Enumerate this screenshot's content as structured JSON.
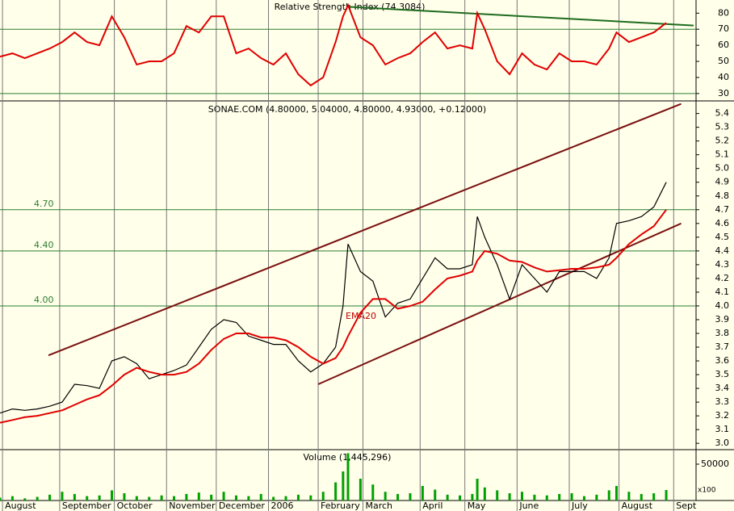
{
  "chart_data": [
    {
      "type": "line",
      "title": "Relative Strength Index (74.3084)",
      "xlim": [
        0,
        280
      ],
      "ylim": [
        26.4,
        88.2
      ],
      "yticks": [
        30,
        40,
        50,
        60,
        70,
        80
      ],
      "levels": [
        70,
        30
      ],
      "level_color": "#2e7d32",
      "x": [
        0,
        5,
        10,
        15,
        20,
        25,
        30,
        35,
        40,
        45,
        50,
        55,
        60,
        65,
        70,
        75,
        80,
        85,
        90,
        95,
        100,
        105,
        110,
        115,
        120,
        125,
        130,
        135,
        138,
        140,
        145,
        150,
        155,
        160,
        165,
        170,
        175,
        180,
        185,
        190,
        192,
        195,
        200,
        205,
        210,
        215,
        220,
        225,
        230,
        235,
        240,
        245,
        248,
        253,
        258,
        263,
        268
      ],
      "series": [
        {
          "name": "RSI",
          "color": "#e00000",
          "values": [
            53,
            55,
            52,
            55,
            58,
            62,
            68,
            62,
            60,
            78,
            65,
            48,
            50,
            50,
            55,
            72,
            68,
            78,
            78,
            55,
            58,
            52,
            48,
            55,
            42,
            35,
            40,
            62,
            78,
            85,
            65,
            60,
            48,
            52,
            55,
            62,
            68,
            58,
            60,
            58,
            80,
            70,
            50,
            42,
            55,
            48,
            45,
            55,
            50,
            50,
            48,
            58,
            68,
            62,
            65,
            68,
            74
          ]
        }
      ],
      "trendlines": [
        {
          "x": [
            140,
            279
          ],
          "values": [
            84,
            72.3
          ],
          "color": "#1f6b1f"
        }
      ]
    },
    {
      "type": "line",
      "title": "SONAE.COM (4.80000, 5.04000, 4.80000, 4.93000, +0.12000)",
      "xlim": [
        0,
        280
      ],
      "ylim": [
        2.96,
        5.48
      ],
      "yticks": [
        {
          "value": 3,
          "label": "3.0"
        },
        3.1,
        3.2,
        3.3,
        3.4,
        3.5,
        3.6,
        3.7,
        3.8,
        3.9,
        {
          "value": 4,
          "label": "4.0"
        },
        4.1,
        4.2,
        4.3,
        4.4,
        4.5,
        4.6,
        4.7,
        4.8,
        4.9,
        {
          "value": 5,
          "label": "5.0"
        },
        5.1,
        5.2,
        5.3,
        5.4
      ],
      "levels": [
        {
          "value": 4.7,
          "label": "4.70"
        },
        {
          "value": 4.4,
          "label": "4.40"
        },
        {
          "value": 4,
          "label": "4.00"
        }
      ],
      "level_color": "#2e7d32",
      "x": [
        0,
        5,
        10,
        15,
        20,
        25,
        30,
        35,
        40,
        45,
        50,
        55,
        60,
        65,
        70,
        75,
        80,
        85,
        90,
        95,
        100,
        105,
        110,
        115,
        120,
        125,
        130,
        135,
        138,
        140,
        145,
        150,
        155,
        160,
        165,
        170,
        175,
        180,
        185,
        190,
        192,
        195,
        200,
        205,
        210,
        215,
        220,
        225,
        230,
        235,
        240,
        245,
        248,
        253,
        258,
        263,
        268
      ],
      "series": [
        {
          "name": "SONAE.COM",
          "color": "#000000",
          "values": [
            3.22,
            3.25,
            3.24,
            3.25,
            3.27,
            3.3,
            3.43,
            3.42,
            3.4,
            3.6,
            3.63,
            3.58,
            3.47,
            3.5,
            3.53,
            3.57,
            3.7,
            3.83,
            3.9,
            3.88,
            3.78,
            3.75,
            3.72,
            3.72,
            3.6,
            3.52,
            3.58,
            3.7,
            4.0,
            4.45,
            4.25,
            4.18,
            3.92,
            4.02,
            4.05,
            4.2,
            4.35,
            4.27,
            4.27,
            4.3,
            4.65,
            4.5,
            4.3,
            4.05,
            4.3,
            4.2,
            4.1,
            4.25,
            4.25,
            4.25,
            4.2,
            4.35,
            4.6,
            4.62,
            4.65,
            4.72,
            4.9
          ]
        },
        {
          "name": "EMA20",
          "color": "#e00000",
          "values": [
            3.15,
            3.17,
            3.19,
            3.2,
            3.22,
            3.24,
            3.28,
            3.32,
            3.35,
            3.42,
            3.5,
            3.55,
            3.52,
            3.5,
            3.5,
            3.52,
            3.58,
            3.68,
            3.76,
            3.8,
            3.8,
            3.77,
            3.77,
            3.75,
            3.7,
            3.63,
            3.58,
            3.62,
            3.7,
            3.78,
            3.95,
            4.05,
            4.05,
            3.98,
            4.0,
            4.03,
            4.12,
            4.2,
            4.22,
            4.25,
            4.33,
            4.4,
            4.38,
            4.33,
            4.32,
            4.28,
            4.25,
            4.26,
            4.27,
            4.27,
            4.28,
            4.3,
            4.35,
            4.45,
            4.52,
            4.58,
            4.7
          ]
        }
      ],
      "trendlines": [
        {
          "x": [
            19.5,
            274
          ],
          "values": [
            3.64,
            5.47
          ],
          "color": "#7a1010"
        },
        {
          "x": [
            128,
            274
          ],
          "values": [
            3.43,
            4.6
          ],
          "color": "#7a1010"
        }
      ]
    },
    {
      "type": "bar",
      "title": "Volume (1,445,296)",
      "unit_note": "x100",
      "xlim": [
        0,
        280
      ],
      "ylim": [
        0,
        68900
      ],
      "yticks": [
        50000
      ],
      "xticks": [
        {
          "value": 1,
          "label": "August"
        },
        {
          "value": 24,
          "label": "September"
        },
        {
          "value": 46,
          "label": "October"
        },
        {
          "value": 67,
          "label": "November"
        },
        {
          "value": 87,
          "label": "December"
        },
        {
          "value": 108,
          "label": "2006"
        },
        {
          "value": 128,
          "label": "February"
        },
        {
          "value": 146,
          "label": "March"
        },
        {
          "value": 169,
          "label": "April"
        },
        {
          "value": 187,
          "label": "May"
        },
        {
          "value": 208,
          "label": "June"
        },
        {
          "value": 229,
          "label": "July"
        },
        {
          "value": 249,
          "label": "August"
        },
        {
          "value": 271,
          "label": "Sept"
        }
      ],
      "x": [
        0,
        5,
        10,
        15,
        20,
        25,
        30,
        35,
        40,
        45,
        50,
        55,
        60,
        65,
        70,
        75,
        80,
        85,
        90,
        95,
        100,
        105,
        110,
        115,
        120,
        125,
        130,
        135,
        138,
        140,
        145,
        150,
        155,
        160,
        165,
        170,
        175,
        180,
        185,
        190,
        192,
        195,
        200,
        205,
        210,
        215,
        220,
        225,
        230,
        235,
        240,
        245,
        248,
        253,
        258,
        263,
        268
      ],
      "color": "#00a000",
      "values": [
        4000,
        6000,
        3000,
        5000,
        8000,
        12000,
        9000,
        6000,
        7000,
        14000,
        10000,
        6000,
        5000,
        7000,
        6000,
        9000,
        11000,
        8000,
        12000,
        7000,
        6000,
        9000,
        5000,
        6000,
        8000,
        7000,
        12000,
        25000,
        40000,
        65000,
        30000,
        22000,
        12000,
        9000,
        10000,
        20000,
        15000,
        8000,
        7000,
        9000,
        30000,
        18000,
        14000,
        10000,
        12000,
        8000,
        7000,
        9000,
        10000,
        6000,
        8000,
        14000,
        20000,
        12000,
        9000,
        10000,
        14453
      ]
    }
  ]
}
